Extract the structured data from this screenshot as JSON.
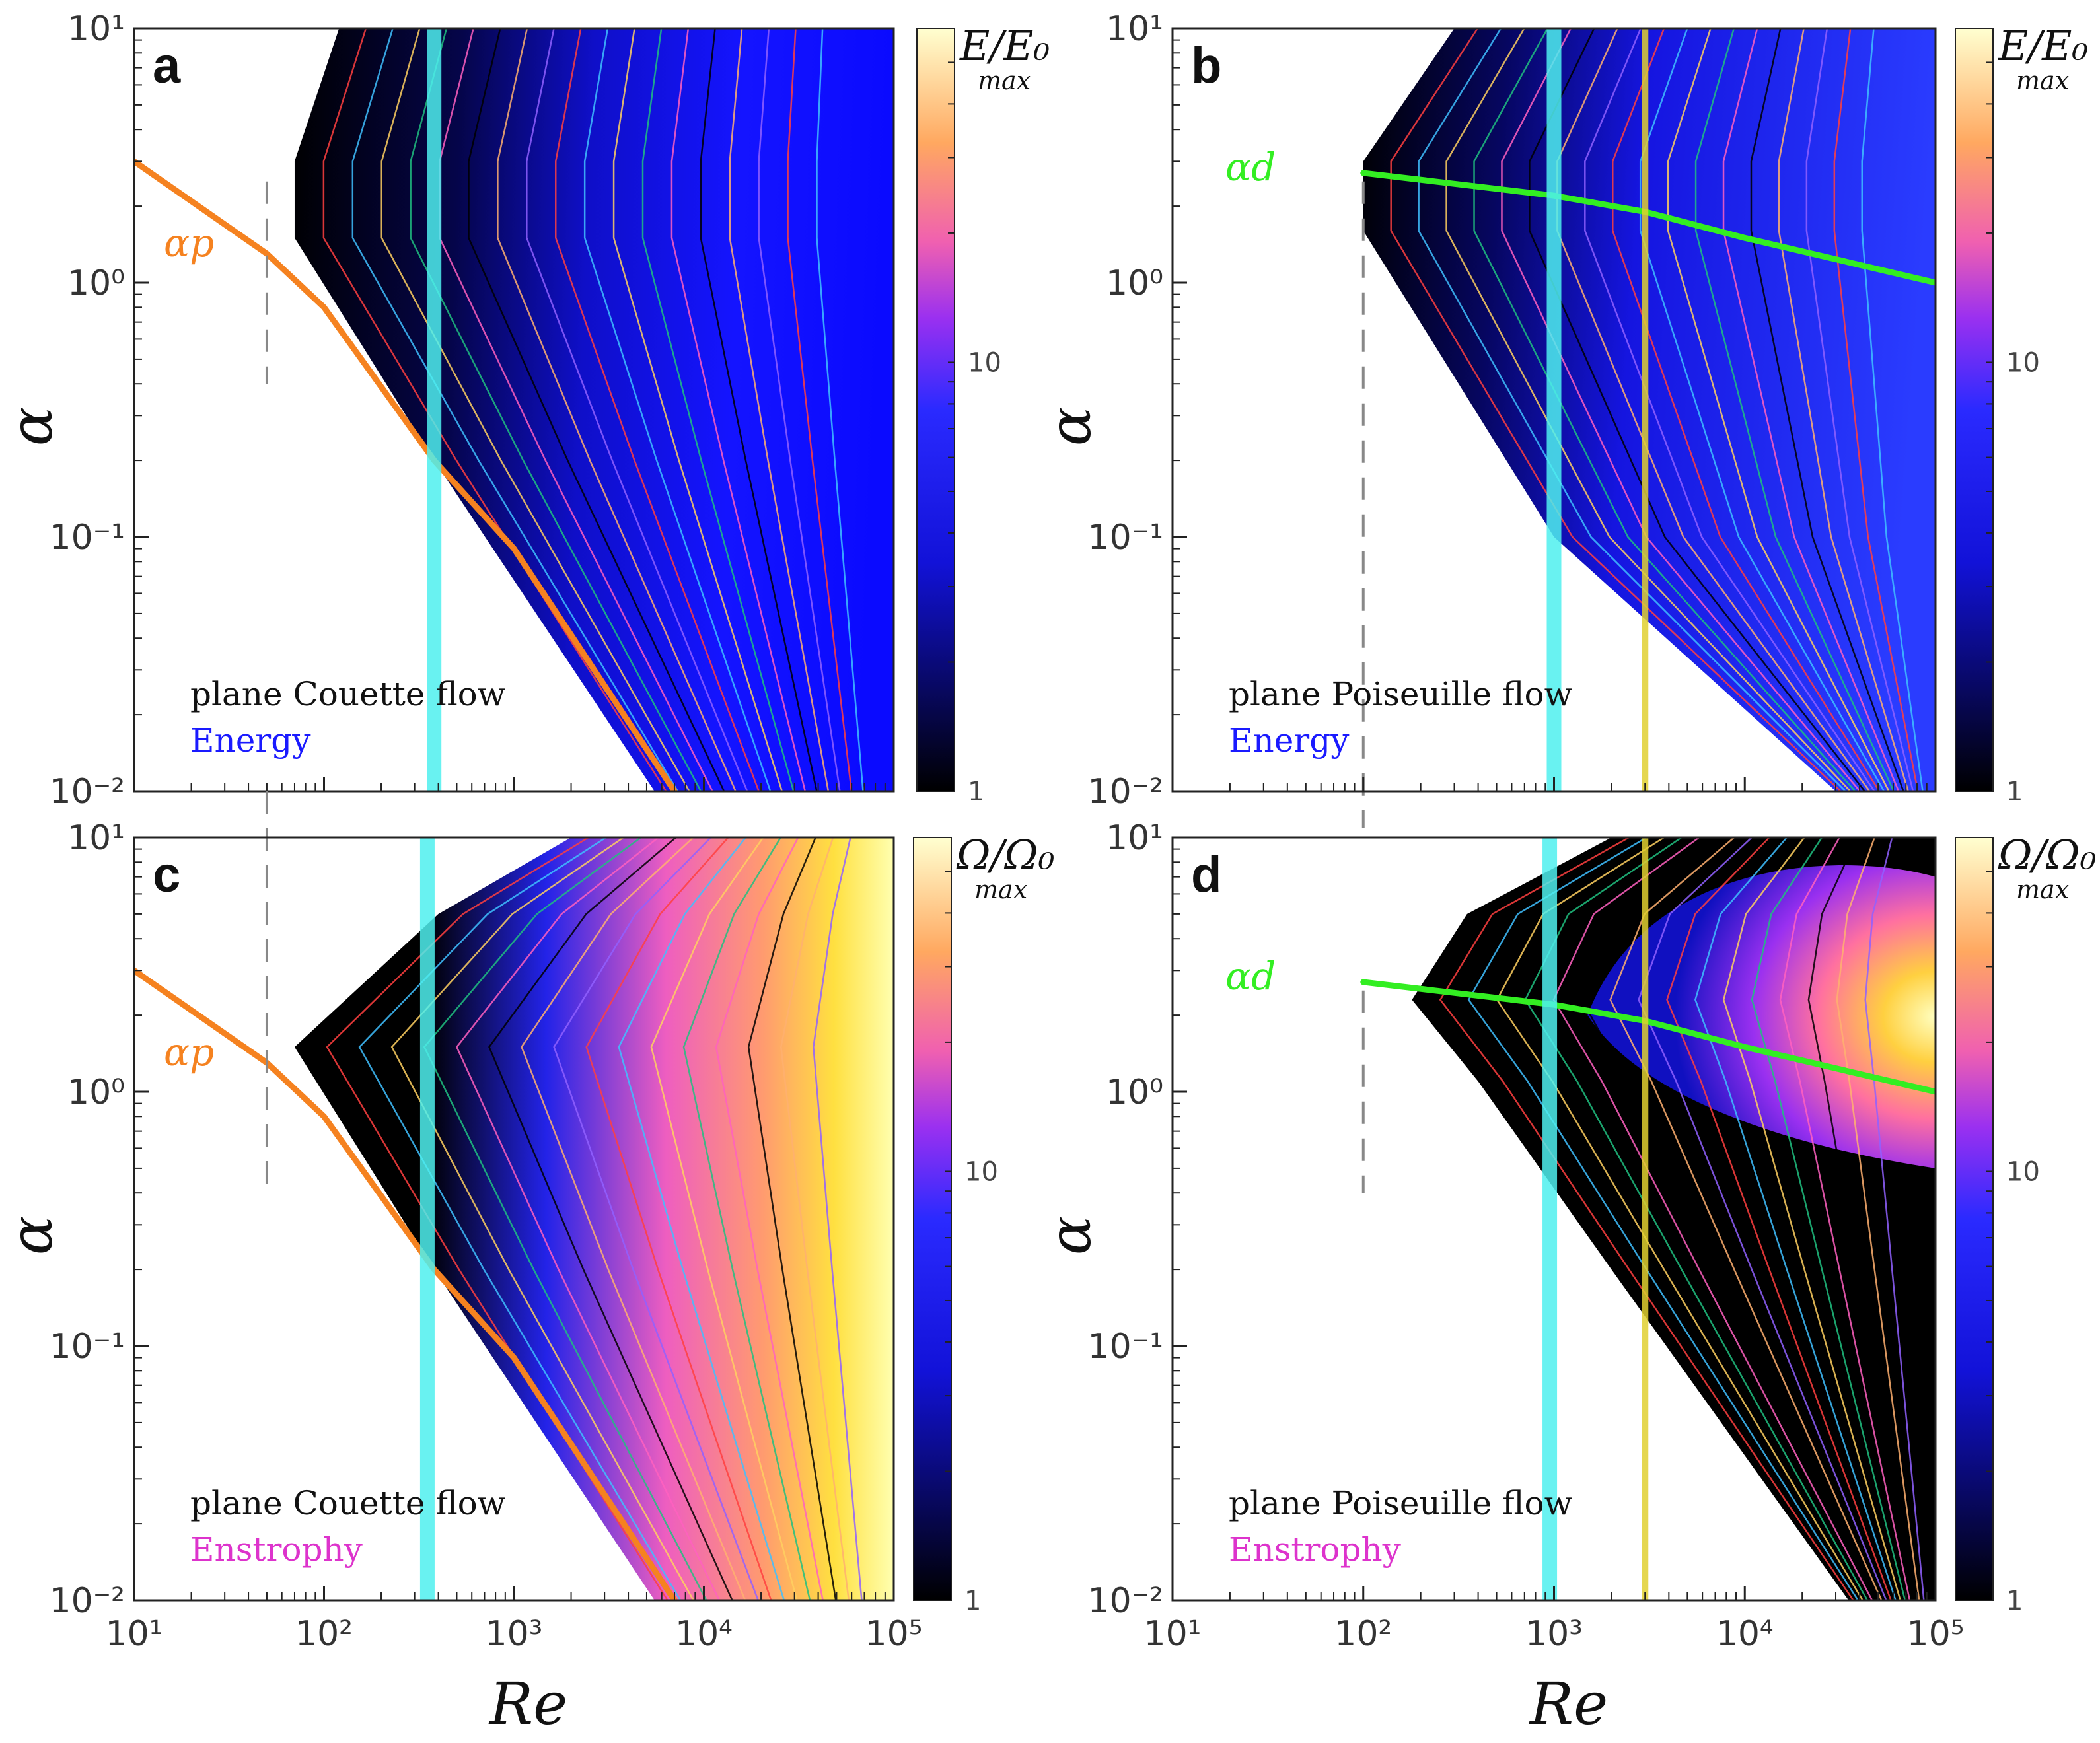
{
  "figure": {
    "shared_x_label": "Re",
    "y_label": "α"
  },
  "chart_data": [
    {
      "id": "a",
      "type": "heatmap",
      "panel_label": "a",
      "flow": "plane Couette flow",
      "quantity": "Energy",
      "quantity_color": "#1a1aff",
      "xlabel": "Re",
      "ylabel": "α",
      "xlim": [
        10,
        100000
      ],
      "ylim": [
        0.01,
        10
      ],
      "x_scale": "log",
      "y_scale": "log",
      "x_ticks": [
        "10¹",
        "10²",
        "10³",
        "10⁴",
        "10⁵"
      ],
      "y_ticks": [
        "10¹",
        "10⁰",
        "10⁻¹",
        "10⁻²"
      ],
      "colorbar": {
        "title": "E/E₀",
        "subtitle": "max",
        "ticks": [
          "1",
          "10"
        ],
        "tick_values": [
          1,
          10
        ],
        "range": [
          1,
          60
        ]
      },
      "fill_colors": [
        "#000000",
        "#0b0b7a",
        "#1111e8",
        "#0a0aff"
      ],
      "reference_lines": [
        {
          "label": "αp",
          "color": "#f58220",
          "points": [
            [
              10,
              3
            ],
            [
              50,
              1.3
            ],
            [
              100,
              0.8
            ],
            [
              380,
              0.2
            ],
            [
              1000,
              0.09
            ],
            [
              7000,
              0.01
            ]
          ]
        },
        {
          "name": "cyan-band",
          "color": "#4ff0ee",
          "x": 380
        },
        {
          "name": "dashed-threshold",
          "color": "#888888",
          "x": 50,
          "y_range": [
            0.4,
            2.5
          ]
        }
      ],
      "region_boundary": [
        [
          120,
          10
        ],
        [
          70,
          3
        ],
        [
          70,
          1.5
        ],
        [
          380,
          0.2
        ],
        [
          5500,
          0.01
        ]
      ]
    },
    {
      "id": "b",
      "type": "heatmap",
      "panel_label": "b",
      "flow": "plane Poiseuille flow",
      "quantity": "Energy",
      "quantity_color": "#1a1aff",
      "xlabel": "Re",
      "ylabel": "α",
      "xlim": [
        10,
        100000
      ],
      "ylim": [
        0.01,
        10
      ],
      "x_scale": "log",
      "y_scale": "log",
      "x_ticks": [
        "10¹",
        "10²",
        "10³",
        "10⁴",
        "10⁵"
      ],
      "y_ticks": [
        "10¹",
        "10⁰",
        "10⁻¹",
        "10⁻²"
      ],
      "colorbar": {
        "title": "E/E₀",
        "subtitle": "max",
        "ticks": [
          "1",
          "10"
        ],
        "tick_values": [
          1,
          10
        ],
        "range": [
          1,
          60
        ]
      },
      "fill_colors": [
        "#000000",
        "#0b0b7a",
        "#1111e8",
        "#1a2dff"
      ],
      "reference_lines": [
        {
          "label": "αd",
          "color": "#33ee22",
          "points": [
            [
              100,
              2.7
            ],
            [
              1000,
              2.2
            ],
            [
              3000,
              1.9
            ],
            [
              10000,
              1.5
            ],
            [
              100000,
              1.0
            ]
          ]
        },
        {
          "name": "cyan-band",
          "color": "#4ff0ee",
          "x": 1000
        },
        {
          "name": "yellow-band",
          "color": "#e0d030",
          "x": 3000
        },
        {
          "name": "dashed-threshold",
          "color": "#888888",
          "x": 100,
          "y_range": [
            0.01,
            2.5
          ]
        }
      ],
      "region_boundary": [
        [
          300,
          10
        ],
        [
          100,
          3
        ],
        [
          100,
          1.6
        ],
        [
          1000,
          0.1
        ],
        [
          30000,
          0.01
        ]
      ]
    },
    {
      "id": "c",
      "type": "heatmap",
      "panel_label": "c",
      "flow": "plane Couette flow",
      "quantity": "Enstrophy",
      "quantity_color": "#dd33cc",
      "xlabel": "Re",
      "ylabel": "α",
      "xlim": [
        10,
        100000
      ],
      "ylim": [
        0.01,
        10
      ],
      "x_scale": "log",
      "y_scale": "log",
      "x_ticks": [
        "10¹",
        "10²",
        "10³",
        "10⁴",
        "10⁵"
      ],
      "y_ticks": [
        "10¹",
        "10⁰",
        "10⁻¹",
        "10⁻²"
      ],
      "colorbar": {
        "title": "Ω/Ω₀",
        "subtitle": "max",
        "ticks": [
          "1",
          "10"
        ],
        "tick_values": [
          1,
          10
        ],
        "range": [
          1,
          60
        ]
      },
      "fill_colors": [
        "#000000",
        "#2020dd",
        "#ff66aa",
        "#ffe040",
        "#ffffaa"
      ],
      "reference_lines": [
        {
          "label": "αp",
          "color": "#f58220",
          "points": [
            [
              10,
              3
            ],
            [
              50,
              1.3
            ],
            [
              100,
              0.8
            ],
            [
              380,
              0.2
            ],
            [
              1000,
              0.09
            ],
            [
              7000,
              0.01
            ]
          ]
        },
        {
          "name": "cyan-band",
          "color": "#4ff0ee",
          "x": 350
        },
        {
          "name": "dashed-threshold",
          "color": "#888888",
          "x": 50,
          "y_range": [
            0.4,
            2.5
          ]
        }
      ],
      "region_boundary": [
        [
          2000,
          10
        ],
        [
          400,
          5
        ],
        [
          70,
          1.5
        ],
        [
          380,
          0.2
        ],
        [
          5500,
          0.01
        ]
      ]
    },
    {
      "id": "d",
      "type": "heatmap",
      "panel_label": "d",
      "flow": "plane Poiseuille flow",
      "quantity": "Enstrophy",
      "quantity_color": "#dd33cc",
      "xlabel": "Re",
      "ylabel": "α",
      "xlim": [
        10,
        100000
      ],
      "ylim": [
        0.01,
        10
      ],
      "x_scale": "log",
      "y_scale": "log",
      "x_ticks": [
        "10¹",
        "10²",
        "10³",
        "10⁴",
        "10⁵"
      ],
      "y_ticks": [
        "10¹",
        "10⁰",
        "10⁻¹",
        "10⁻²"
      ],
      "colorbar": {
        "title": "Ω/Ω₀",
        "subtitle": "max",
        "ticks": [
          "1",
          "10"
        ],
        "tick_values": [
          1,
          10
        ],
        "range": [
          1,
          60
        ]
      },
      "fill_colors": [
        "#000000",
        "#2020dd",
        "#ff66aa",
        "#ffe040",
        "#ffffaa"
      ],
      "reference_lines": [
        {
          "label": "αd",
          "color": "#33ee22",
          "points": [
            [
              100,
              2.7
            ],
            [
              1000,
              2.2
            ],
            [
              3000,
              1.9
            ],
            [
              10000,
              1.5
            ],
            [
              100000,
              1.0
            ]
          ]
        },
        {
          "name": "cyan-band",
          "color": "#4ff0ee",
          "x": 950
        },
        {
          "name": "yellow-band",
          "color": "#e0d030",
          "x": 3000
        },
        {
          "name": "dashed-threshold",
          "color": "#888888",
          "x": 100,
          "y_range": [
            0.4,
            2.5
          ]
        }
      ],
      "region_boundary": [
        [
          2000,
          10
        ],
        [
          350,
          5
        ],
        [
          180,
          2.3
        ],
        [
          400,
          1.1
        ],
        [
          2000,
          0.2
        ],
        [
          35000,
          0.01
        ]
      ]
    }
  ]
}
